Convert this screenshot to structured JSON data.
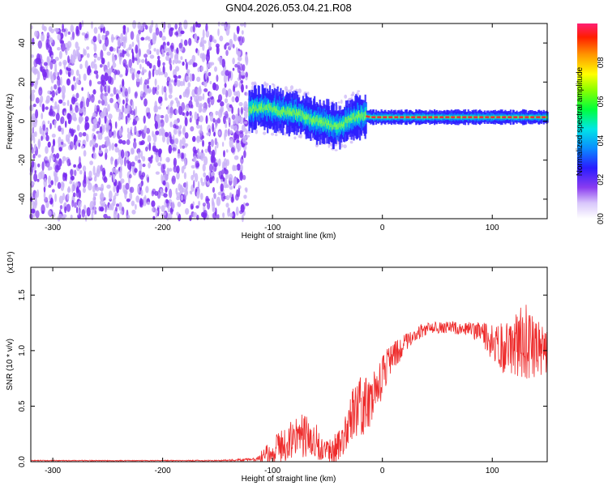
{
  "title": "GN04.2026.053.04.21.R08",
  "colors": {
    "snr_line": "#ee2c2c",
    "track_core": "#e8303a",
    "noise": "#7a2cf0",
    "noise_light": "#c9b2f7"
  },
  "chart_data": [
    {
      "type": "heatmap",
      "title": "GN04.2026.053.04.21.R08",
      "xlabel": "Height of straight line (km)",
      "ylabel": "Frequency (Hz)",
      "xlim": [
        -320,
        150
      ],
      "ylim": [
        -50,
        50
      ],
      "x_ticks": [
        -300,
        -200,
        -100,
        0,
        100
      ],
      "y_ticks": [
        -40,
        -20,
        0,
        20,
        40
      ],
      "colorbar": {
        "label": "Normalized spectral amplitude",
        "range": [
          0,
          1
        ],
        "ticks": [
          "0.0",
          "0.2",
          "0.4",
          "0.6",
          "0.8"
        ],
        "tick_values": [
          0.0,
          0.2,
          0.4,
          0.6,
          0.8
        ]
      },
      "regions": [
        {
          "name": "noise",
          "x_range": [
            -320,
            -123
          ],
          "freq_range": [
            -50,
            50
          ],
          "amplitude": 0.15
        },
        {
          "name": "multipath",
          "x_range": [
            -123,
            -15
          ],
          "amplitude": 0.45
        },
        {
          "name": "single-tone",
          "x_range": [
            -15,
            150
          ],
          "amplitude": 0.95
        }
      ],
      "track": [
        {
          "x": -122,
          "y": 6
        },
        {
          "x": -110,
          "y": 7
        },
        {
          "x": -100,
          "y": 6
        },
        {
          "x": -90,
          "y": 5
        },
        {
          "x": -80,
          "y": 4
        },
        {
          "x": -70,
          "y": 2
        },
        {
          "x": -60,
          "y": 0
        },
        {
          "x": -52,
          "y": -1
        },
        {
          "x": -45,
          "y": -2
        },
        {
          "x": -40,
          "y": -3
        },
        {
          "x": -30,
          "y": 1
        },
        {
          "x": -20,
          "y": 3
        },
        {
          "x": -10,
          "y": 2
        },
        {
          "x": 0,
          "y": 2
        },
        {
          "x": 50,
          "y": 2
        },
        {
          "x": 100,
          "y": 2
        },
        {
          "x": 150,
          "y": 2
        }
      ]
    },
    {
      "type": "line",
      "xlabel": "Height of straight line (km)",
      "ylabel": "SNR (10 * v/v)",
      "y_scale_label": "(x10⁴)",
      "xlim": [
        -320,
        150
      ],
      "ylim": [
        0,
        1.75
      ],
      "x_ticks": [
        -300,
        -200,
        -100,
        0,
        100
      ],
      "y_ticks": [
        "0.0",
        "0.5",
        "1.0",
        "1.5"
      ],
      "y_tick_values": [
        0.0,
        0.5,
        1.0,
        1.5
      ],
      "series": [
        {
          "name": "SNR",
          "x": [
            -320,
            -300,
            -250,
            -200,
            -150,
            -115,
            -105,
            -95,
            -85,
            -75,
            -68,
            -60,
            -50,
            -45,
            -40,
            -35,
            -30,
            -25,
            -20,
            -15,
            -10,
            -5,
            0,
            5,
            10,
            15,
            20,
            25,
            30,
            35,
            40,
            50,
            60,
            70,
            80,
            90,
            95,
            100,
            110,
            120,
            130,
            140,
            150
          ],
          "y": [
            0.01,
            0.01,
            0.01,
            0.01,
            0.01,
            0.02,
            0.08,
            0.12,
            0.18,
            0.22,
            0.26,
            0.18,
            0.1,
            0.1,
            0.14,
            0.26,
            0.38,
            0.46,
            0.48,
            0.52,
            0.58,
            0.66,
            0.78,
            0.88,
            0.94,
            1.0,
            1.06,
            1.1,
            1.14,
            1.18,
            1.2,
            1.21,
            1.21,
            1.2,
            1.19,
            1.16,
            1.12,
            1.06,
            1.02,
            1.05,
            1.08,
            1.04,
            1.0
          ],
          "amp": [
            0.003,
            0.003,
            0.003,
            0.003,
            0.004,
            0.01,
            0.06,
            0.1,
            0.12,
            0.14,
            0.15,
            0.12,
            0.08,
            0.1,
            0.12,
            0.14,
            0.16,
            0.18,
            0.2,
            0.2,
            0.18,
            0.16,
            0.15,
            0.12,
            0.1,
            0.08,
            0.06,
            0.05,
            0.05,
            0.05,
            0.04,
            0.04,
            0.04,
            0.04,
            0.05,
            0.07,
            0.1,
            0.14,
            0.16,
            0.2,
            0.26,
            0.2,
            0.14
          ]
        }
      ]
    }
  ]
}
